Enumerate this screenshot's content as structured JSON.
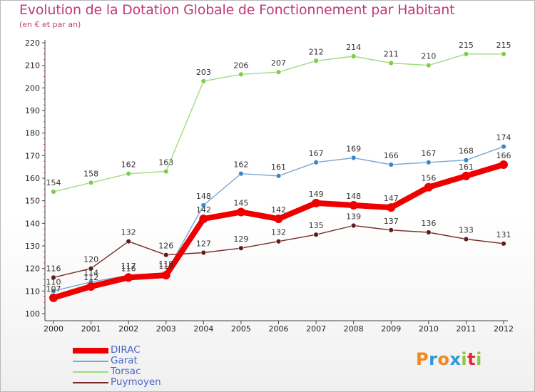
{
  "header": {
    "title": "Evolution de la Dotation Globale de Fonctionnement par Habitant",
    "subtitle": "(en € et par an)"
  },
  "logo": {
    "text": "Proxiti",
    "letters": [
      {
        "ch": "P",
        "color": "#f08a1c"
      },
      {
        "ch": "r",
        "color": "#2a9ad8"
      },
      {
        "ch": "o",
        "color": "#f08a1c"
      },
      {
        "ch": "x",
        "color": "#2a9ad8"
      },
      {
        "ch": "i",
        "color": "#8dc63f"
      },
      {
        "ch": "t",
        "color": "#e8262c"
      },
      {
        "ch": "i",
        "color": "#8dc63f"
      }
    ]
  },
  "chart_data": {
    "type": "line",
    "title": "Evolution de la Dotation Globale de Fonctionnement par Habitant",
    "subtitle": "(en € et par an)",
    "x": [
      2000,
      2001,
      2002,
      2003,
      2004,
      2005,
      2006,
      2007,
      2008,
      2009,
      2010,
      2011,
      2012
    ],
    "ylim": [
      100,
      220
    ],
    "yticks": [
      100,
      110,
      120,
      130,
      140,
      150,
      160,
      170,
      180,
      190,
      200,
      210,
      220
    ],
    "grid": false,
    "legend": "bottom-left",
    "series": [
      {
        "name": "Torsac",
        "color": "#9fdc7c",
        "marker": "#7fcc4c",
        "values": [
          154,
          158,
          162,
          163,
          203,
          206,
          207,
          212,
          214,
          211,
          210,
          215,
          215
        ]
      },
      {
        "name": "Garat",
        "color": "#78a8d4",
        "marker": "#3c86c4",
        "values": [
          110,
          114,
          117,
          118,
          148,
          162,
          161,
          167,
          169,
          166,
          167,
          168,
          174
        ]
      },
      {
        "name": "Puymoyen",
        "color": "#7a2a2a",
        "marker": "#5e1c1c",
        "values": [
          116,
          120,
          132,
          126,
          127,
          129,
          132,
          135,
          139,
          137,
          136,
          133,
          131
        ]
      },
      {
        "name": "DIRAC",
        "color": "#ee0000",
        "marker": "#ee0000",
        "values": [
          107,
          112,
          116,
          117,
          142,
          145,
          142,
          149,
          148,
          147,
          156,
          161,
          166
        ]
      }
    ]
  }
}
